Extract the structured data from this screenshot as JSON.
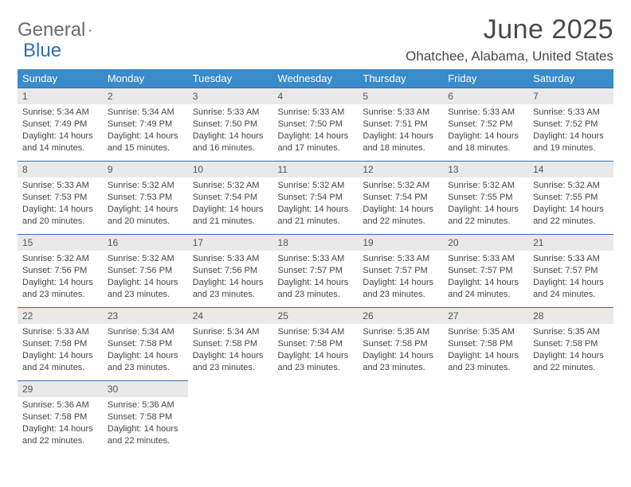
{
  "logo": {
    "text1": "General",
    "text2": "Blue"
  },
  "title": "June 2025",
  "location": "Ohatchee, Alabama, United States",
  "colors": {
    "header_bg": "#3a8bc9",
    "header_text": "#ffffff",
    "daynum_bg": "#e9e9e9",
    "daynum_border": "#2f6fb0",
    "text": "#454545"
  },
  "weekdays": [
    "Sunday",
    "Monday",
    "Tuesday",
    "Wednesday",
    "Thursday",
    "Friday",
    "Saturday"
  ],
  "days": [
    {
      "n": "1",
      "sr": "5:34 AM",
      "ss": "7:49 PM",
      "dl": "14 hours and 14 minutes."
    },
    {
      "n": "2",
      "sr": "5:34 AM",
      "ss": "7:49 PM",
      "dl": "14 hours and 15 minutes."
    },
    {
      "n": "3",
      "sr": "5:33 AM",
      "ss": "7:50 PM",
      "dl": "14 hours and 16 minutes."
    },
    {
      "n": "4",
      "sr": "5:33 AM",
      "ss": "7:50 PM",
      "dl": "14 hours and 17 minutes."
    },
    {
      "n": "5",
      "sr": "5:33 AM",
      "ss": "7:51 PM",
      "dl": "14 hours and 18 minutes."
    },
    {
      "n": "6",
      "sr": "5:33 AM",
      "ss": "7:52 PM",
      "dl": "14 hours and 18 minutes."
    },
    {
      "n": "7",
      "sr": "5:33 AM",
      "ss": "7:52 PM",
      "dl": "14 hours and 19 minutes."
    },
    {
      "n": "8",
      "sr": "5:33 AM",
      "ss": "7:53 PM",
      "dl": "14 hours and 20 minutes."
    },
    {
      "n": "9",
      "sr": "5:32 AM",
      "ss": "7:53 PM",
      "dl": "14 hours and 20 minutes."
    },
    {
      "n": "10",
      "sr": "5:32 AM",
      "ss": "7:54 PM",
      "dl": "14 hours and 21 minutes."
    },
    {
      "n": "11",
      "sr": "5:32 AM",
      "ss": "7:54 PM",
      "dl": "14 hours and 21 minutes."
    },
    {
      "n": "12",
      "sr": "5:32 AM",
      "ss": "7:54 PM",
      "dl": "14 hours and 22 minutes."
    },
    {
      "n": "13",
      "sr": "5:32 AM",
      "ss": "7:55 PM",
      "dl": "14 hours and 22 minutes."
    },
    {
      "n": "14",
      "sr": "5:32 AM",
      "ss": "7:55 PM",
      "dl": "14 hours and 22 minutes."
    },
    {
      "n": "15",
      "sr": "5:32 AM",
      "ss": "7:56 PM",
      "dl": "14 hours and 23 minutes."
    },
    {
      "n": "16",
      "sr": "5:32 AM",
      "ss": "7:56 PM",
      "dl": "14 hours and 23 minutes."
    },
    {
      "n": "17",
      "sr": "5:33 AM",
      "ss": "7:56 PM",
      "dl": "14 hours and 23 minutes."
    },
    {
      "n": "18",
      "sr": "5:33 AM",
      "ss": "7:57 PM",
      "dl": "14 hours and 23 minutes."
    },
    {
      "n": "19",
      "sr": "5:33 AM",
      "ss": "7:57 PM",
      "dl": "14 hours and 23 minutes."
    },
    {
      "n": "20",
      "sr": "5:33 AM",
      "ss": "7:57 PM",
      "dl": "14 hours and 24 minutes."
    },
    {
      "n": "21",
      "sr": "5:33 AM",
      "ss": "7:57 PM",
      "dl": "14 hours and 24 minutes."
    },
    {
      "n": "22",
      "sr": "5:33 AM",
      "ss": "7:58 PM",
      "dl": "14 hours and 24 minutes."
    },
    {
      "n": "23",
      "sr": "5:34 AM",
      "ss": "7:58 PM",
      "dl": "14 hours and 23 minutes."
    },
    {
      "n": "24",
      "sr": "5:34 AM",
      "ss": "7:58 PM",
      "dl": "14 hours and 23 minutes."
    },
    {
      "n": "25",
      "sr": "5:34 AM",
      "ss": "7:58 PM",
      "dl": "14 hours and 23 minutes."
    },
    {
      "n": "26",
      "sr": "5:35 AM",
      "ss": "7:58 PM",
      "dl": "14 hours and 23 minutes."
    },
    {
      "n": "27",
      "sr": "5:35 AM",
      "ss": "7:58 PM",
      "dl": "14 hours and 23 minutes."
    },
    {
      "n": "28",
      "sr": "5:35 AM",
      "ss": "7:58 PM",
      "dl": "14 hours and 22 minutes."
    },
    {
      "n": "29",
      "sr": "5:36 AM",
      "ss": "7:58 PM",
      "dl": "14 hours and 22 minutes."
    },
    {
      "n": "30",
      "sr": "5:36 AM",
      "ss": "7:58 PM",
      "dl": "14 hours and 22 minutes."
    }
  ],
  "labels": {
    "sunrise": "Sunrise:",
    "sunset": "Sunset:",
    "daylight": "Daylight:"
  }
}
